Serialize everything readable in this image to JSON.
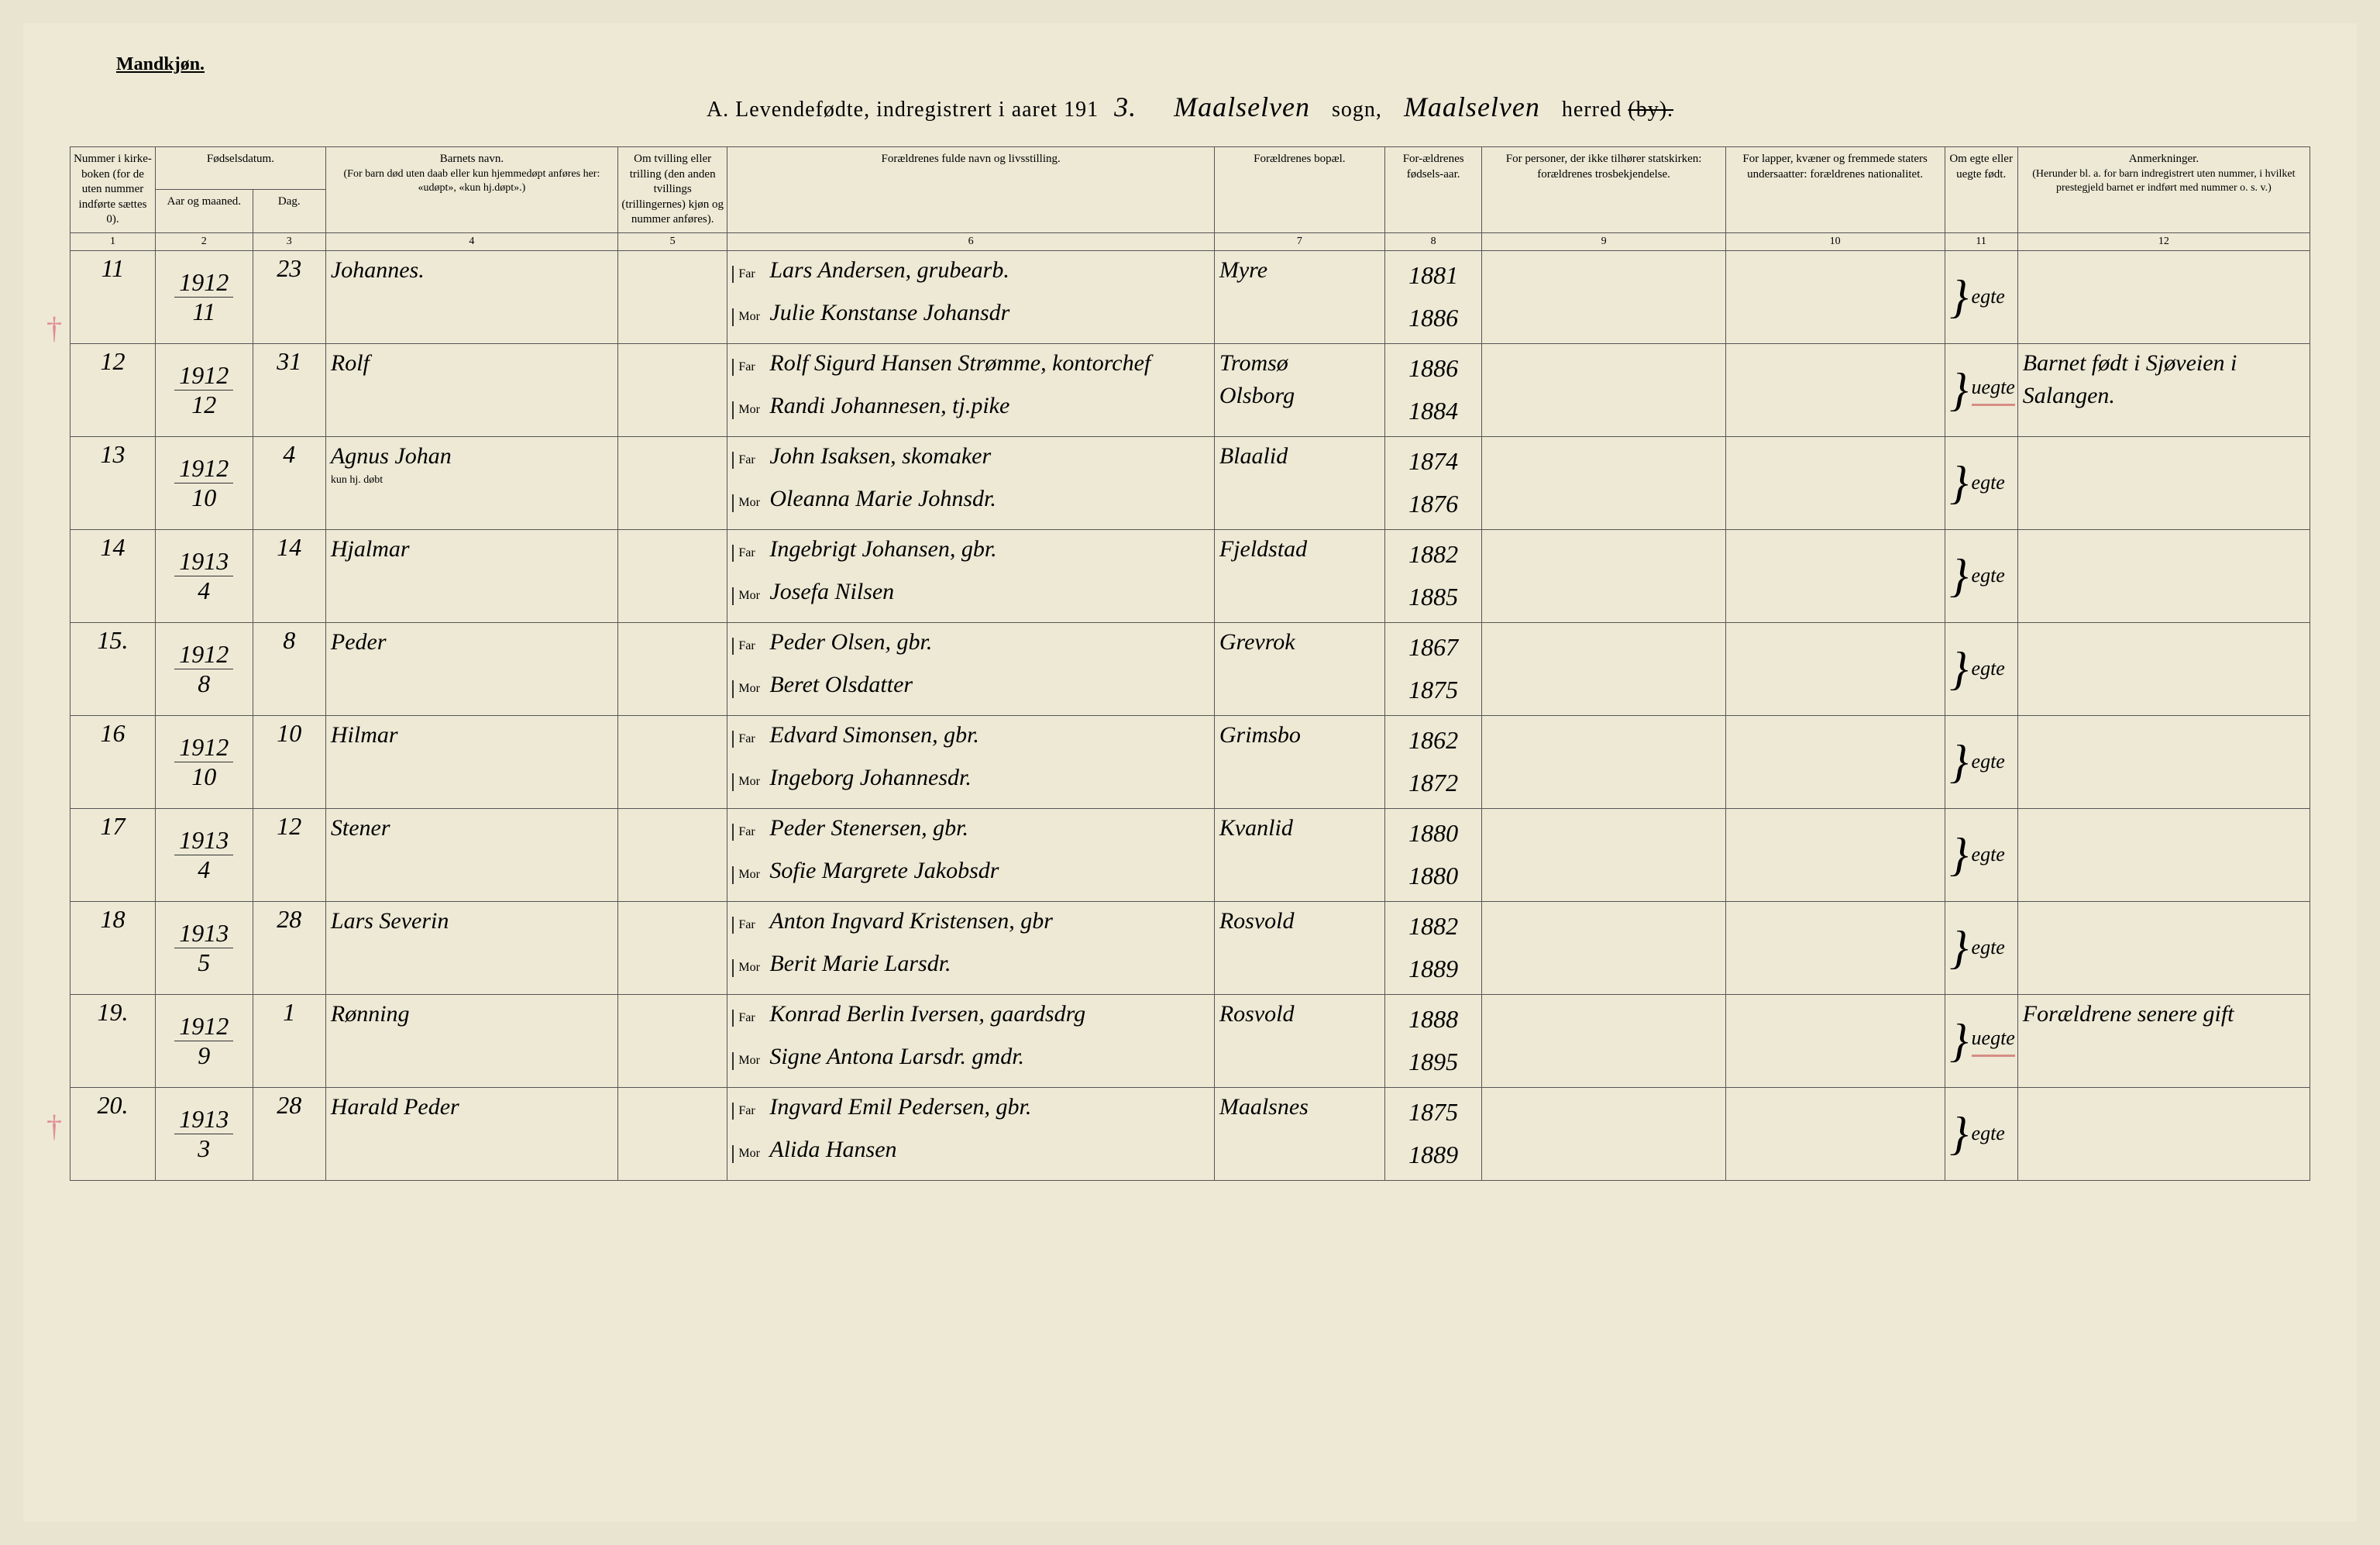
{
  "header": {
    "gender_label": "Mandkjøn.",
    "title_prefix": "A.  Levendefødte, indregistrert i aaret 191",
    "year_suffix": "3.",
    "sogn_script": "Maalselven",
    "sogn_label": "sogn,",
    "herred_script": "Maalselven",
    "herred_label": "herred",
    "by_struck": "(by)."
  },
  "columns": {
    "c1": "Nummer i kirke-boken (for de uten nummer indførte sættes 0).",
    "c2a": "Fødselsdatum.",
    "c2b": "Aar og maaned.",
    "c3": "Dag.",
    "c4": "Barnets navn.",
    "c4_sub": "(For barn død uten daab eller kun hjemmedøpt anføres her: «udøpt», «kun hj.døpt».)",
    "c5": "Om tvilling eller trilling (den anden tvillings (trillingernes) kjøn og nummer anføres).",
    "c6": "Forældrenes fulde navn og livsstilling.",
    "c7": "Forældrenes bopæl.",
    "c8": "For-ældrenes fødsels-aar.",
    "c9": "For personer, der ikke tilhører statskirken: forældrenes trosbekjendelse.",
    "c10": "For lapper, kvæner og fremmede staters undersaatter: forældrenes nationalitet.",
    "c11": "Om egte eller uegte født.",
    "c12": "Anmerkninger.",
    "c12_sub": "(Herunder bl. a. for barn indregistrert uten nummer, i hvilket prestegjeld barnet er indført med nummer o. s. v.)",
    "nums": [
      "1",
      "2",
      "3",
      "4",
      "5",
      "6",
      "7",
      "8",
      "9",
      "10",
      "11",
      "12"
    ]
  },
  "labels": {
    "far": "Far",
    "mor": "Mor"
  },
  "rows": [
    {
      "num": "11",
      "year": "1912",
      "month": "11",
      "day": "23",
      "name": "Johannes.",
      "far": "Lars Andersen, grubearb.",
      "mor": "Julie Konstanse Johansdr",
      "bopel": "Myre",
      "far_year": "1881",
      "mor_year": "1886",
      "egte": "egte",
      "anm": ""
    },
    {
      "num": "12",
      "year": "1912",
      "month": "12",
      "day": "31",
      "name": "Rolf",
      "far": "Rolf Sigurd Hansen Strømme, kontorchef",
      "mor": "Randi Johannesen, tj.pike",
      "bopel": "Tromsø",
      "bopel2": "Olsborg",
      "far_year": "1886",
      "mor_year": "1884",
      "egte": "uegte",
      "egte_red": true,
      "anm": "Barnet født i Sjøveien i Salangen."
    },
    {
      "num": "13",
      "year": "1912",
      "month": "10",
      "day": "4",
      "name": "Agnus Johan",
      "name_sub": "kun hj. døbt",
      "far": "John Isaksen, skomaker",
      "mor": "Oleanna Marie Johnsdr.",
      "bopel": "Blaalid",
      "far_year": "1874",
      "mor_year": "1876",
      "egte": "egte",
      "anm": ""
    },
    {
      "num": "14",
      "year": "1913",
      "month": "4",
      "day": "14",
      "name": "Hjalmar",
      "far": "Ingebrigt Johansen, gbr.",
      "mor": "Josefa Nilsen",
      "bopel": "Fjeldstad",
      "far_year": "1882",
      "mor_year": "1885",
      "egte": "egte",
      "anm": ""
    },
    {
      "num": "15.",
      "year": "1912",
      "month": "8",
      "day": "8",
      "name": "Peder",
      "far": "Peder Olsen, gbr.",
      "mor": "Beret Olsdatter",
      "bopel": "Grevrok",
      "far_year": "1867",
      "mor_year": "1875",
      "egte": "egte",
      "anm": ""
    },
    {
      "num": "16",
      "year": "1912",
      "month": "10",
      "day": "10",
      "name": "Hilmar",
      "far": "Edvard Simonsen, gbr.",
      "mor": "Ingeborg Johannesdr.",
      "bopel": "Grimsbo",
      "far_year": "1862",
      "mor_year": "1872",
      "egte": "egte",
      "anm": ""
    },
    {
      "num": "17",
      "year": "1913",
      "month": "4",
      "day": "12",
      "name": "Stener",
      "far": "Peder Stenersen, gbr.",
      "mor": "Sofie Margrete Jakobsdr",
      "bopel": "Kvanlid",
      "far_year": "1880",
      "mor_year": "1880",
      "egte": "egte",
      "anm": ""
    },
    {
      "num": "18",
      "year": "1913",
      "month": "5",
      "day": "28",
      "name": "Lars Severin",
      "far": "Anton Ingvard Kristensen, gbr",
      "mor": "Berit Marie Larsdr.",
      "bopel": "Rosvold",
      "far_year": "1882",
      "mor_year": "1889",
      "egte": "egte",
      "anm": ""
    },
    {
      "num": "19.",
      "year": "1912",
      "month": "9",
      "day": "1",
      "name": "Rønning",
      "far": "Konrad Berlin Iversen, gaardsdrg",
      "mor": "Signe Antona Larsdr. gmdr.",
      "bopel": "Rosvold",
      "far_year": "1888",
      "mor_year": "1895",
      "egte": "uegte",
      "egte_red": true,
      "anm": "Forældrene senere gift"
    },
    {
      "num": "20.",
      "year": "1913",
      "month": "3",
      "day": "28",
      "name": "Harald Peder",
      "far": "Ingvard Emil Pedersen, gbr.",
      "mor": "Alida Hansen",
      "bopel": "Maalsnes",
      "far_year": "1875",
      "mor_year": "1889",
      "egte": "egte",
      "anm": ""
    }
  ],
  "colors": {
    "paper": "#ede9d5",
    "ink": "#2a2a2a",
    "red_pencil": "rgba(210,110,120,0.7)"
  }
}
